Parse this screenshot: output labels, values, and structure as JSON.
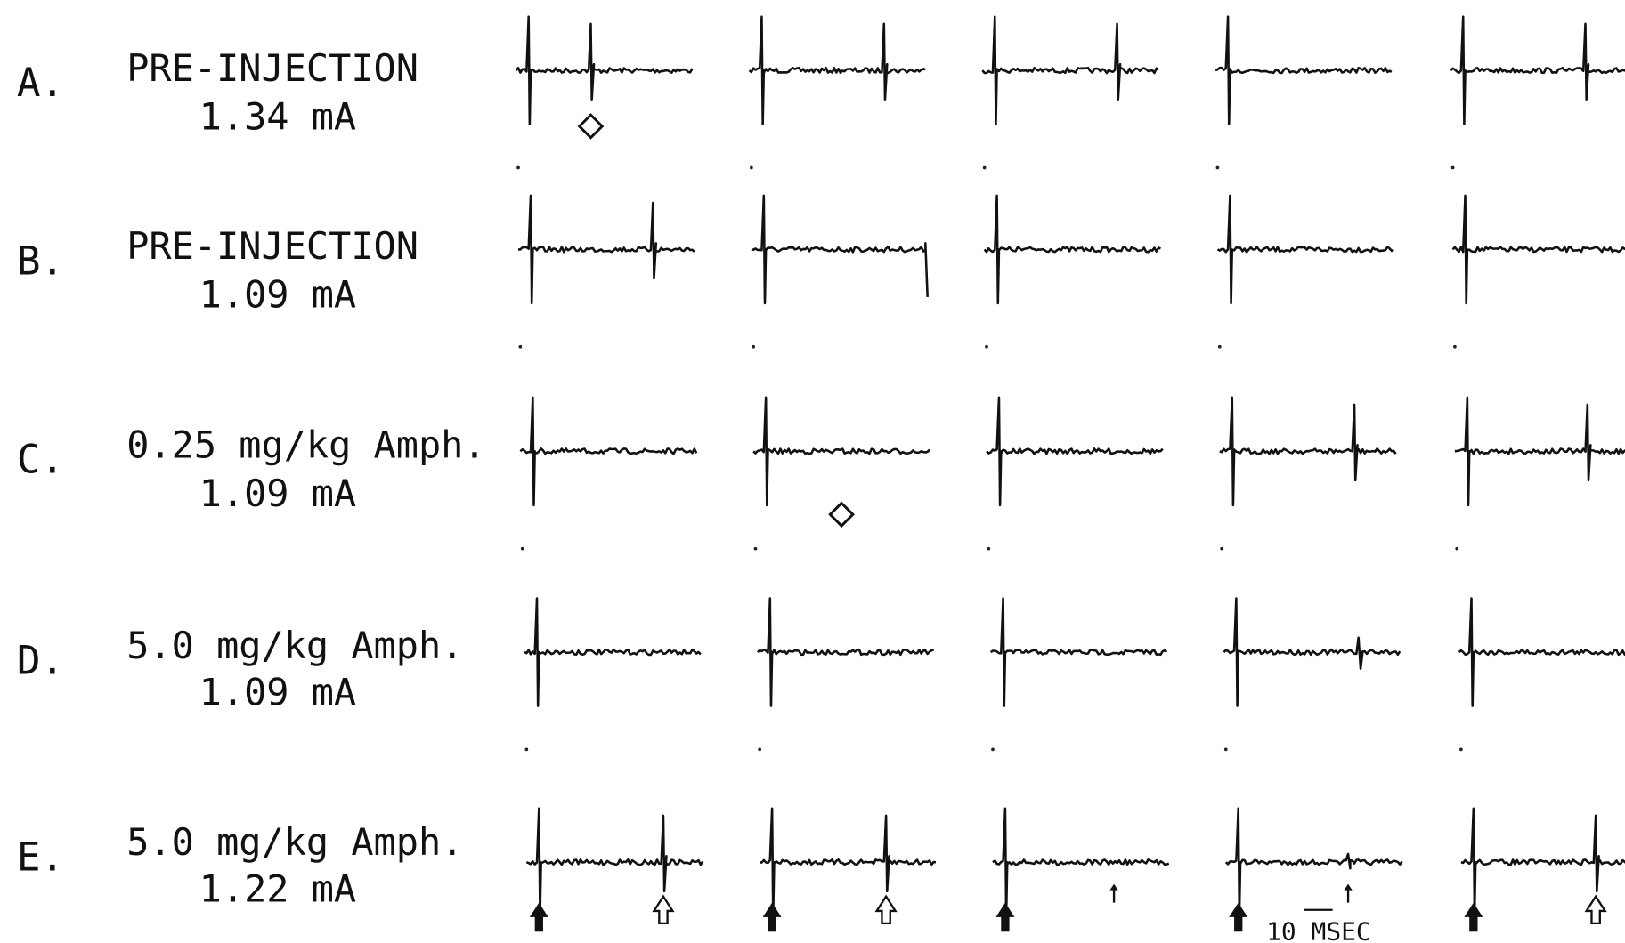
{
  "rows": [
    {
      "letter": "A.",
      "condition": "PRE-INJECTION",
      "current": "1.34 mA"
    },
    {
      "letter": "B.",
      "condition": "PRE-INJECTION",
      "current": "1.09 mA"
    },
    {
      "letter": "C.",
      "condition": "0.25 mg/kg Amph.",
      "current": "1.09 mA"
    },
    {
      "letter": "D.",
      "condition": "5.0 mg/kg Amph.",
      "current": "1.09 mA"
    },
    {
      "letter": "E.",
      "condition": "5.0 mg/kg Amph.",
      "current": "1.22 mA"
    }
  ],
  "scale_bar": "10 MSEC"
}
